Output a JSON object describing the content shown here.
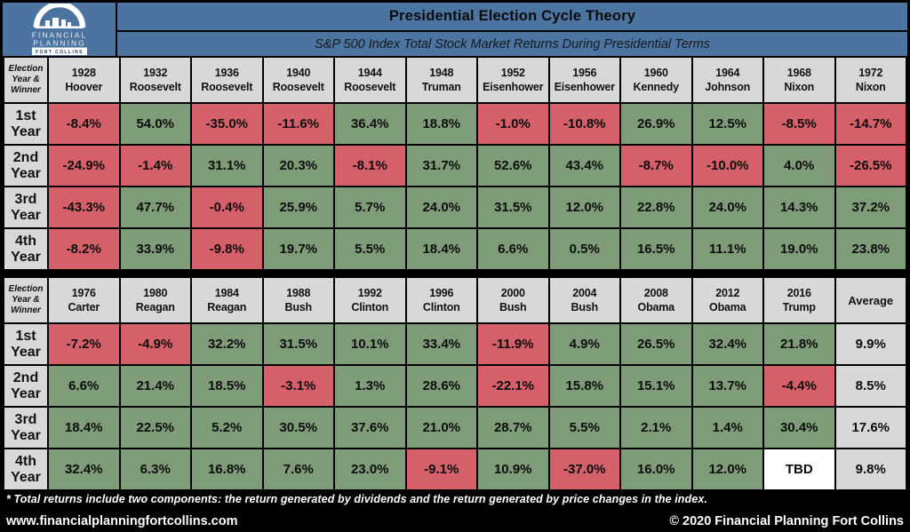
{
  "logo": {
    "name_line1": "FINANCIAL",
    "name_line2": "PLANNING",
    "location": "FORT COLLINS"
  },
  "footer": {
    "note": "* Total returns include two components: the return generated by dividends and the return generated by price changes in the index.",
    "website": "www.financialplanningfortcollins.com",
    "copyright": "© 2020 Financial Planning Fort Collins"
  },
  "colors": {
    "header_blue": "#4C74A1",
    "label_gray": "#D8D8D8",
    "grid_black": "#000000"
  },
  "chart_data": {
    "type": "table",
    "title": "Presidential Election Cycle Theory",
    "subtitle": "S&P 500 Index Total Stock Market Returns During Presidential Terms",
    "corner_label": "Election Year & Winner",
    "row_labels": [
      "1st Year",
      "2nd Year",
      "3rd Year",
      "4th Year"
    ],
    "average_label": "Average",
    "columns_per_block": 12,
    "terms": [
      {
        "year": "1928",
        "winner": "Hoover",
        "returns_pct": [
          -8.4,
          -24.9,
          -43.3,
          -8.2
        ]
      },
      {
        "year": "1932",
        "winner": "Roosevelt",
        "returns_pct": [
          54.0,
          -1.4,
          47.7,
          33.9
        ]
      },
      {
        "year": "1936",
        "winner": "Roosevelt",
        "returns_pct": [
          -35.0,
          31.1,
          -0.4,
          -9.8
        ]
      },
      {
        "year": "1940",
        "winner": "Roosevelt",
        "returns_pct": [
          -11.6,
          20.3,
          25.9,
          19.7
        ]
      },
      {
        "year": "1944",
        "winner": "Roosevelt",
        "returns_pct": [
          36.4,
          -8.1,
          5.7,
          5.5
        ]
      },
      {
        "year": "1948",
        "winner": "Truman",
        "returns_pct": [
          18.8,
          31.7,
          24.0,
          18.4
        ]
      },
      {
        "year": "1952",
        "winner": "Eisenhower",
        "returns_pct": [
          -1.0,
          52.6,
          31.5,
          6.6
        ]
      },
      {
        "year": "1956",
        "winner": "Eisenhower",
        "returns_pct": [
          -10.8,
          43.4,
          12.0,
          0.5
        ]
      },
      {
        "year": "1960",
        "winner": "Kennedy",
        "returns_pct": [
          26.9,
          -8.7,
          22.8,
          16.5
        ]
      },
      {
        "year": "1964",
        "winner": "Johnson",
        "returns_pct": [
          12.5,
          -10.0,
          24.0,
          11.1
        ]
      },
      {
        "year": "1968",
        "winner": "Nixon",
        "returns_pct": [
          -8.5,
          4.0,
          14.3,
          19.0
        ]
      },
      {
        "year": "1972",
        "winner": "Nixon",
        "returns_pct": [
          -14.7,
          -26.5,
          37.2,
          23.8
        ]
      },
      {
        "year": "1976",
        "winner": "Carter",
        "returns_pct": [
          -7.2,
          6.6,
          18.4,
          32.4
        ]
      },
      {
        "year": "1980",
        "winner": "Reagan",
        "returns_pct": [
          -4.9,
          21.4,
          22.5,
          6.3
        ]
      },
      {
        "year": "1984",
        "winner": "Reagan",
        "returns_pct": [
          32.2,
          18.5,
          5.2,
          16.8
        ]
      },
      {
        "year": "1988",
        "winner": "Bush",
        "returns_pct": [
          31.5,
          -3.1,
          30.5,
          7.6
        ]
      },
      {
        "year": "1992",
        "winner": "Clinton",
        "returns_pct": [
          10.1,
          1.3,
          37.6,
          23.0
        ]
      },
      {
        "year": "1996",
        "winner": "Clinton",
        "returns_pct": [
          33.4,
          28.6,
          21.0,
          -9.1
        ]
      },
      {
        "year": "2000",
        "winner": "Bush",
        "returns_pct": [
          -11.9,
          -22.1,
          28.7,
          10.9
        ]
      },
      {
        "year": "2004",
        "winner": "Bush",
        "returns_pct": [
          4.9,
          15.8,
          5.5,
          -37.0
        ]
      },
      {
        "year": "2008",
        "winner": "Obama",
        "returns_pct": [
          26.5,
          15.1,
          2.1,
          16.0
        ]
      },
      {
        "year": "2012",
        "winner": "Obama",
        "returns_pct": [
          32.4,
          13.7,
          1.4,
          12.0
        ]
      },
      {
        "year": "2016",
        "winner": "Trump",
        "returns_pct": [
          21.8,
          -4.4,
          30.4,
          "TBD"
        ]
      }
    ],
    "averages_pct": [
      9.9,
      8.5,
      17.6,
      9.8
    ],
    "cell_colors": {
      "positive": "#7E9C78",
      "negative": "#D6606A",
      "average_bg": "#D8D8D8",
      "tbd_bg": "#FFFFFF"
    }
  }
}
